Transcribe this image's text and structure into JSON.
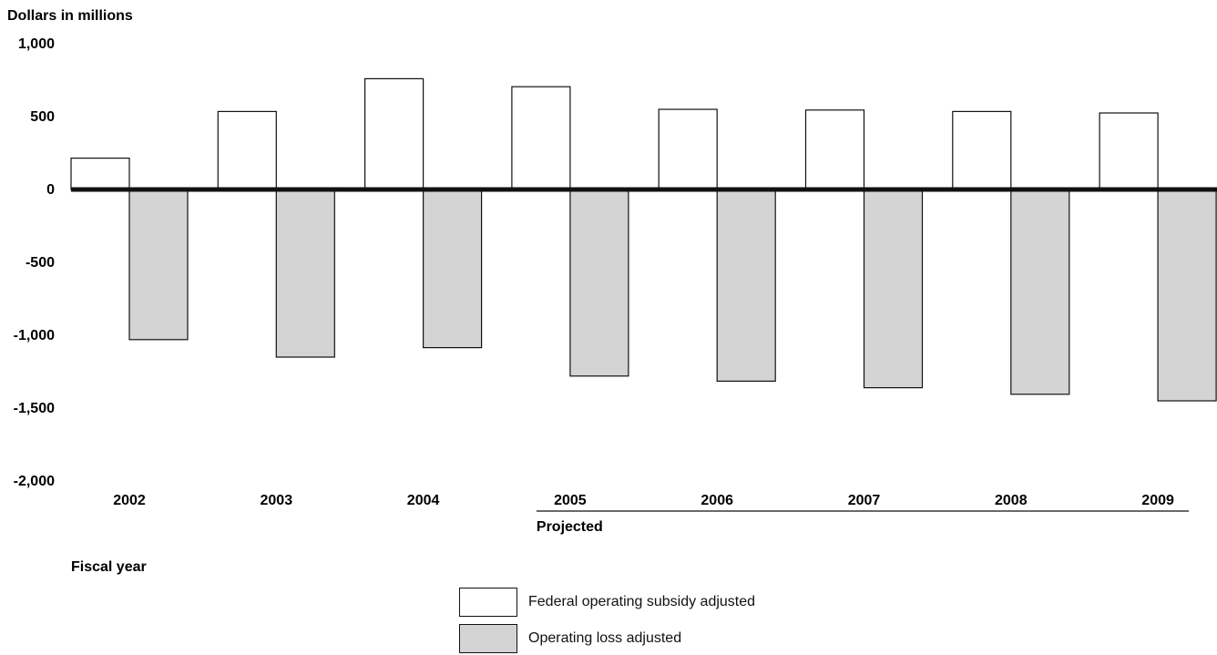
{
  "chart_data": {
    "type": "bar",
    "ylabel": "Dollars in millions",
    "xlabel": "Fiscal year",
    "categories": [
      "2002",
      "2003",
      "2004",
      "2005",
      "2006",
      "2007",
      "2008",
      "2009"
    ],
    "series": [
      {
        "name": "Federal operating subsidy adjusted",
        "color": "#ffffff",
        "values": [
          215,
          535,
          760,
          705,
          550,
          545,
          535,
          525
        ]
      },
      {
        "name": "Operating loss adjusted",
        "color": "#d4d4d4",
        "values": [
          -1030,
          -1150,
          -1085,
          -1280,
          -1315,
          -1360,
          -1405,
          -1450
        ]
      }
    ],
    "ylim": [
      -2000,
      1000
    ],
    "yticks": [
      {
        "value": 1000,
        "label": "1,000"
      },
      {
        "value": 500,
        "label": "500"
      },
      {
        "value": 0,
        "label": "0"
      },
      {
        "value": -500,
        "label": "-500"
      },
      {
        "value": -1000,
        "label": "-1,000"
      },
      {
        "value": -1500,
        "label": "-1,500"
      },
      {
        "value": -2000,
        "label": "-2,000"
      }
    ],
    "projected_label": "Projected",
    "projected_start": "2005",
    "projected_end": "2009",
    "grid": false,
    "legend_position": "bottom-center"
  }
}
